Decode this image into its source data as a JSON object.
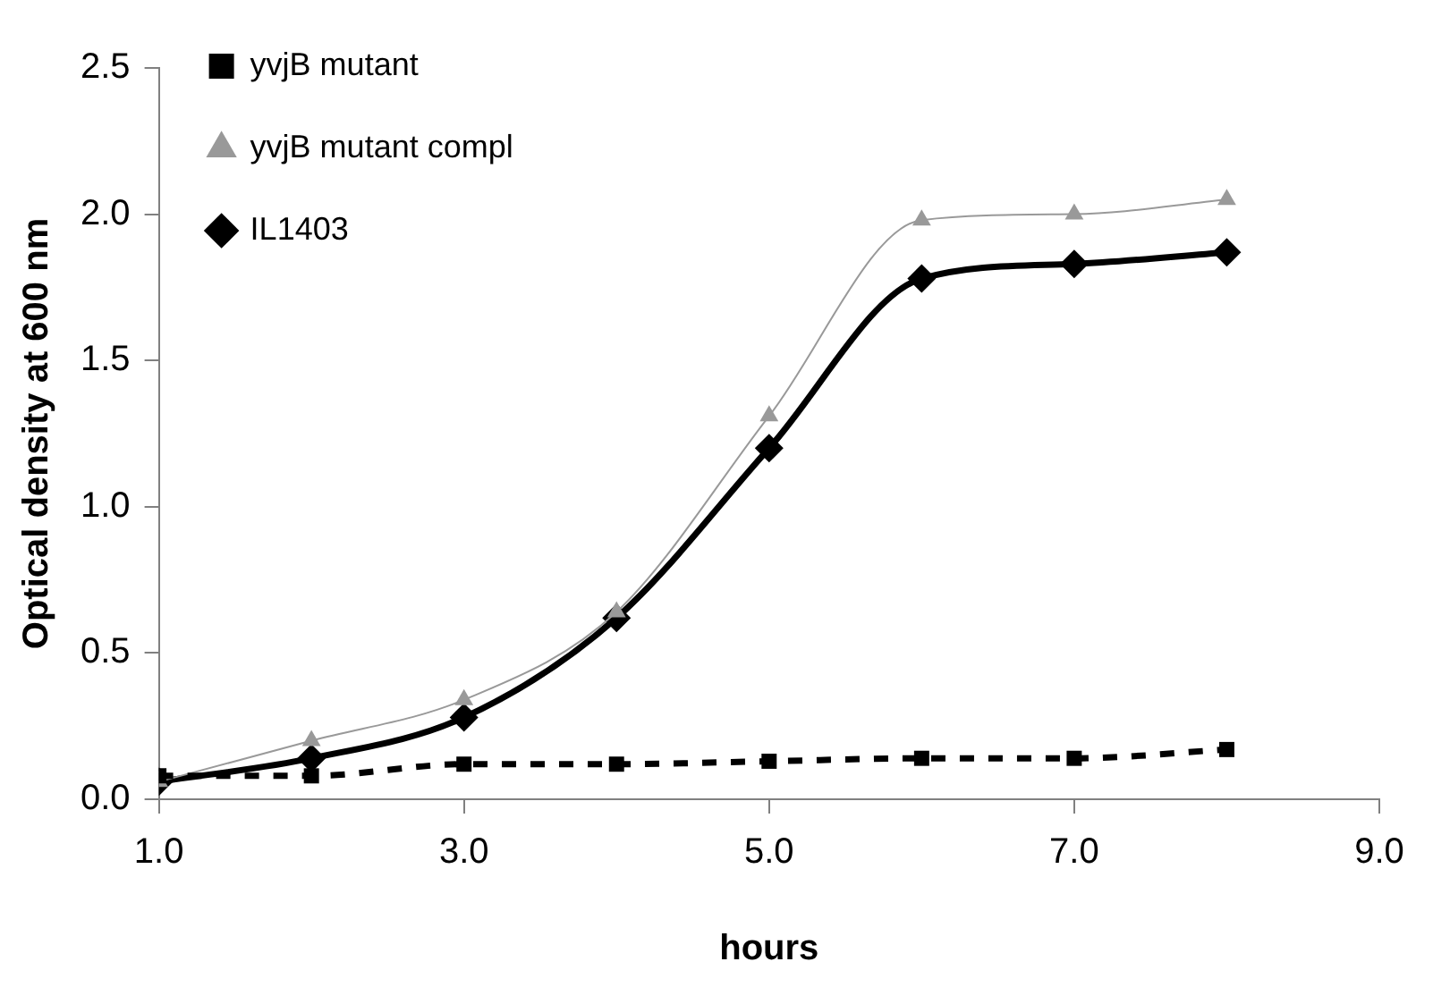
{
  "chart_data": {
    "type": "line",
    "xlabel": "hours",
    "ylabel": "Optical density at 600 nm",
    "x": [
      1,
      2,
      3,
      4,
      5,
      6,
      7,
      8
    ],
    "series": [
      {
        "name": "yvjB mutant",
        "color": "#000000",
        "marker": "square",
        "line_style": "dashed",
        "values": [
          0.08,
          0.08,
          0.12,
          0.12,
          0.13,
          0.14,
          0.14,
          0.17
        ]
      },
      {
        "name": "yvjB mutant compl",
        "color": "#999999",
        "marker": "triangle",
        "line_style": "solid",
        "values": [
          0.06,
          0.2,
          0.34,
          0.64,
          1.31,
          1.98,
          2.0,
          2.05
        ]
      },
      {
        "name": "IL1403",
        "color": "#000000",
        "marker": "diamond",
        "line_style": "solid",
        "values": [
          0.06,
          0.14,
          0.28,
          0.62,
          1.2,
          1.78,
          1.83,
          1.87
        ]
      }
    ],
    "xlim": [
      1,
      9
    ],
    "xticks": [
      {
        "value": 1,
        "label": "1.0"
      },
      {
        "value": 3,
        "label": "3.0"
      },
      {
        "value": 5,
        "label": "5.0"
      },
      {
        "value": 7,
        "label": "7.0"
      },
      {
        "value": 9,
        "label": "9.0"
      }
    ],
    "ylim": [
      0,
      2.5
    ],
    "yticks": [
      {
        "value": 0,
        "label": "0.0"
      },
      {
        "value": 0.5,
        "label": "0.5"
      },
      {
        "value": 1,
        "label": "1.0"
      },
      {
        "value": 1.5,
        "label": "1.5"
      },
      {
        "value": 2,
        "label": "2.0"
      },
      {
        "value": 2.5,
        "label": "2.5"
      }
    ],
    "grid": false,
    "legend": "top left"
  }
}
